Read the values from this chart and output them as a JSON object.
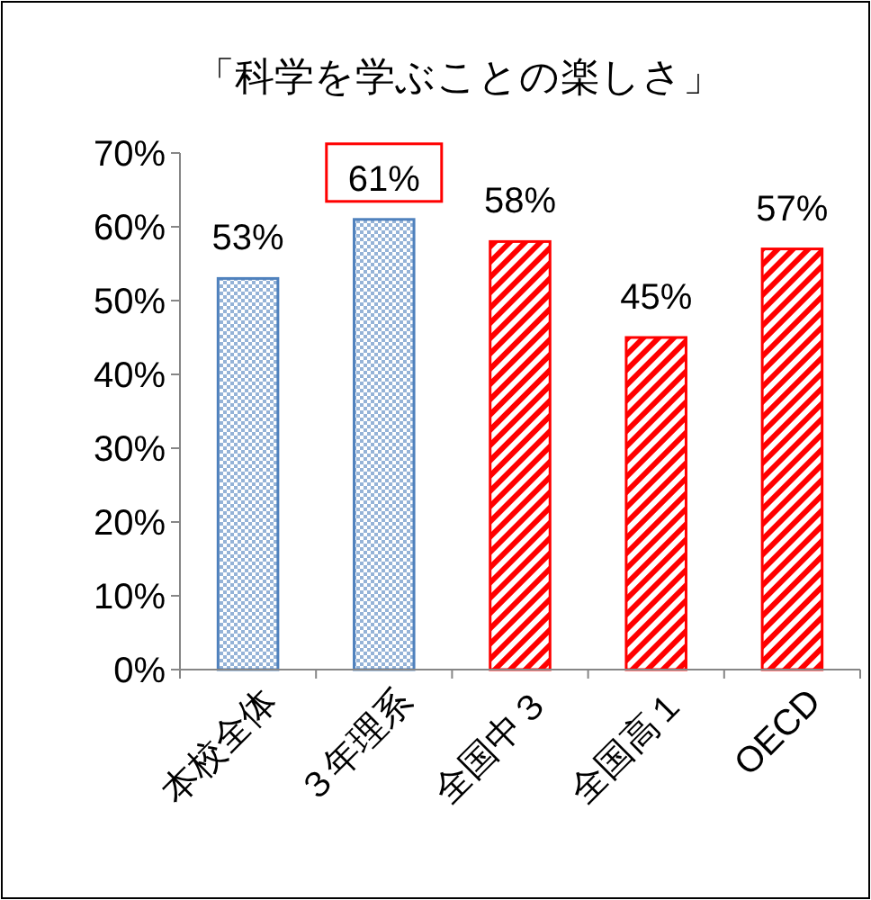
{
  "chart_data": {
    "type": "bar",
    "title": "「科学を学ぶことの楽しさ」",
    "categories": [
      "本校全体",
      "３年理系",
      "全国中３",
      "全国高１",
      "OECD"
    ],
    "values": [
      53,
      61,
      58,
      45,
      57
    ],
    "colors": [
      "#4f81bd",
      "#4f81bd",
      "#ff0000",
      "#ff0000",
      "#ff0000"
    ],
    "value_labels": [
      "53%",
      "61%",
      "58%",
      "45%",
      "57%"
    ],
    "ylim": [
      0,
      70
    ],
    "yticks": [
      {
        "value": 0,
        "label": "0%"
      },
      {
        "value": 10,
        "label": "10%"
      },
      {
        "value": 20,
        "label": "20%"
      },
      {
        "value": 30,
        "label": "30%"
      },
      {
        "value": 40,
        "label": "40%"
      },
      {
        "value": 50,
        "label": "50%"
      },
      {
        "value": 60,
        "label": "60%"
      },
      {
        "value": 70,
        "label": "70%"
      }
    ],
    "grid": false
  }
}
